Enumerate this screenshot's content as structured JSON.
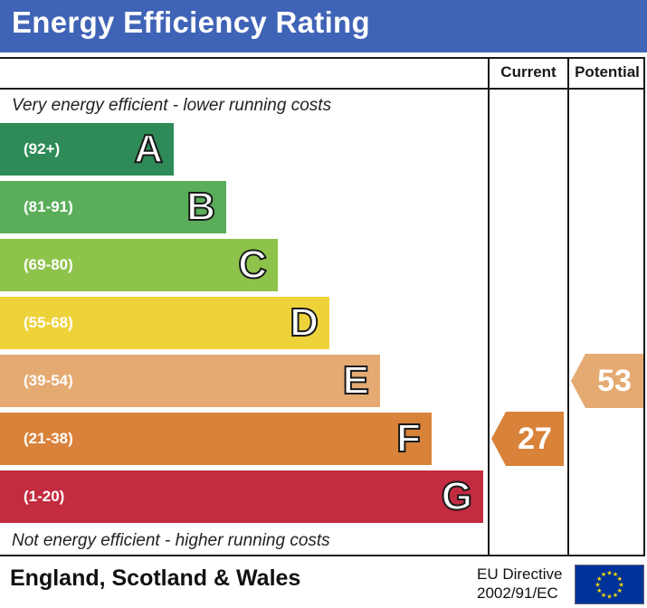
{
  "title": "Energy Efficiency Rating",
  "columns": {
    "current": "Current",
    "potential": "Potential"
  },
  "top_caption": "Very energy efficient - lower running costs",
  "bottom_caption": "Not energy efficient - higher running costs",
  "chart_data": {
    "type": "bar",
    "bands": [
      {
        "letter": "A",
        "range": "(92+)",
        "color": "#2e8b57"
      },
      {
        "letter": "B",
        "range": "(81-91)",
        "color": "#5aae5a"
      },
      {
        "letter": "C",
        "range": "(69-80)",
        "color": "#8dc34b"
      },
      {
        "letter": "D",
        "range": "(55-68)",
        "color": "#eed23a"
      },
      {
        "letter": "E",
        "range": "(39-54)",
        "color": "#e5aa72"
      },
      {
        "letter": "F",
        "range": "(21-38)",
        "color": "#d9823a"
      },
      {
        "letter": "G",
        "range": "(1-20)",
        "color": "#c32b40"
      }
    ],
    "current": {
      "value": 27,
      "band": "F",
      "color": "#d9823a"
    },
    "potential": {
      "value": 53,
      "band": "E",
      "color": "#e5aa72"
    }
  },
  "footer": {
    "country": "England, Scotland & Wales",
    "directive_line1": "EU Directive",
    "directive_line2": "2002/91/EC"
  }
}
